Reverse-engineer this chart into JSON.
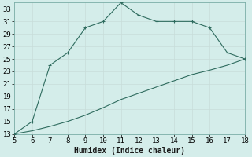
{
  "xlabel": "Humidex (Indice chaleur)",
  "line1_x": [
    5,
    6,
    7,
    8,
    9,
    10,
    11,
    12,
    13,
    14,
    15,
    16,
    17,
    18
  ],
  "line1_y": [
    13,
    15,
    24,
    26,
    30,
    31,
    34,
    32,
    31,
    31,
    31,
    30,
    26,
    25
  ],
  "line2_x": [
    5,
    6,
    7,
    8,
    9,
    10,
    11,
    12,
    13,
    14,
    15,
    16,
    17,
    18
  ],
  "line2_y": [
    13,
    13.5,
    14.2,
    15.0,
    16.0,
    17.2,
    18.5,
    19.5,
    20.5,
    21.5,
    22.5,
    23.2,
    24.0,
    25
  ],
  "line_color": "#2e6b5e",
  "bg_color": "#d4edea",
  "grid_color": "#c8ddd9",
  "xlim": [
    5,
    18
  ],
  "ylim": [
    13,
    34
  ],
  "xticks": [
    5,
    6,
    7,
    8,
    9,
    10,
    11,
    12,
    13,
    14,
    15,
    16,
    17,
    18
  ],
  "yticks": [
    13,
    15,
    17,
    19,
    21,
    23,
    25,
    27,
    29,
    31,
    33
  ],
  "tick_fontsize": 6.5,
  "label_fontsize": 7,
  "marker": "+"
}
